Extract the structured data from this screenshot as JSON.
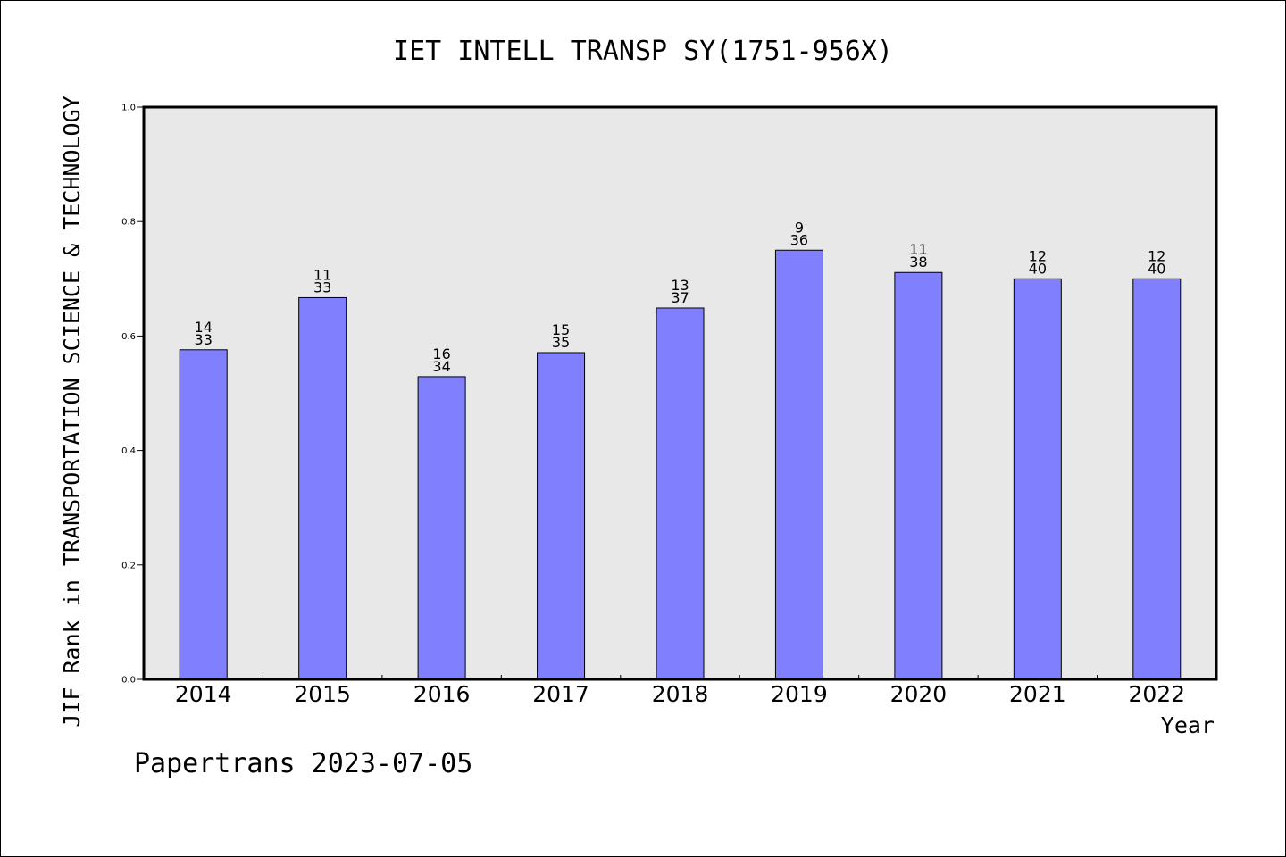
{
  "chart_data": {
    "type": "bar",
    "title": "IET INTELL TRANSP SY(1751-956X)",
    "xlabel": "Year",
    "ylabel": "JIF Rank in TRANSPORTATION SCIENCE & TECHNOLOGY",
    "ylim": [
      0,
      1.0
    ],
    "yticks": [
      "0.0",
      "0.2",
      "0.4",
      "0.6",
      "0.8",
      "1.0"
    ],
    "categories": [
      "2014",
      "2015",
      "2016",
      "2017",
      "2018",
      "2019",
      "2020",
      "2021",
      "2022"
    ],
    "values": [
      0.576,
      0.667,
      0.529,
      0.571,
      0.649,
      0.75,
      0.711,
      0.7,
      0.7
    ],
    "ranks": [
      "14",
      "11",
      "16",
      "15",
      "13",
      "9",
      "11",
      "12",
      "12"
    ],
    "totals": [
      "33",
      "33",
      "34",
      "35",
      "37",
      "36",
      "38",
      "40",
      "40"
    ],
    "grid": false,
    "colors": {
      "bar": "#8080ff",
      "plot_bg": "#e8e8e8"
    }
  },
  "footer": "Papertrans 2023-07-05"
}
